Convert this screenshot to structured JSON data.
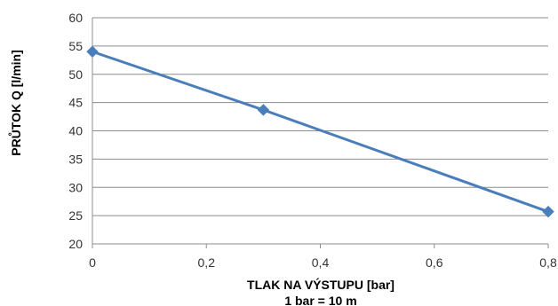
{
  "chart_data": {
    "type": "line",
    "title": "",
    "xlabel": "TLAK NA VÝSTUPU [bar]",
    "xlabel_note": "1 bar = 10 m",
    "ylabel": "PRŮTOK Q [l/min]",
    "xlim": [
      0,
      0.8
    ],
    "ylim": [
      20,
      60
    ],
    "x_ticks": [
      "0",
      "0,2",
      "0,4",
      "0,6",
      "0,8"
    ],
    "y_ticks": [
      "20",
      "25",
      "30",
      "35",
      "40",
      "45",
      "50",
      "55",
      "60"
    ],
    "grid": "horizontal",
    "legend": "none",
    "series": [
      {
        "x": [
          0,
          0.3,
          0.8
        ],
        "y": [
          54,
          43.7,
          25.7
        ],
        "color": "#4a7ebb",
        "marker": "diamond"
      }
    ]
  }
}
